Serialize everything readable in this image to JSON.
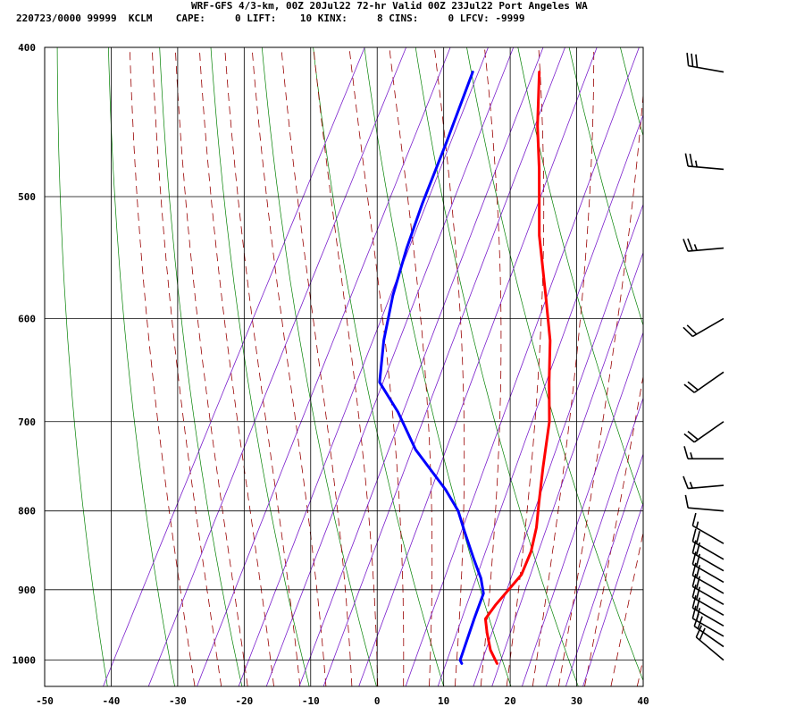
{
  "header": {
    "title": "WRF-GFS 4/3-km, 00Z 20Jul22 72-hr Valid 00Z 23Jul22 Port Angeles WA",
    "stats": "220723/0000 99999  KCLM    CAPE:     0 LIFT:    10 KINX:     8 CINS:     0 LFCV: -9999"
  },
  "chart_data": {
    "type": "line",
    "title": "WRF-GFS 4/3-km, 00Z 20Jul22 72-hr Valid 00Z 23Jul22 Port Angeles WA",
    "xlabel": "",
    "ylabel": "",
    "xlim": [
      -50,
      40
    ],
    "ylim": [
      1040,
      400
    ],
    "yscale": "log",
    "grid": true,
    "x_ticks": [
      -50,
      -40,
      -30,
      -20,
      -10,
      0,
      10,
      20,
      30,
      40
    ],
    "x_tick_labels": [
      "-50",
      "-40",
      "-30",
      "-20",
      "-10",
      "0",
      "10",
      "20",
      "30",
      "40"
    ],
    "y_ticks": [
      400,
      500,
      600,
      700,
      800,
      900,
      1000
    ],
    "y_tick_labels": [
      "400",
      "500",
      "600",
      "700",
      "800",
      "900",
      "1000"
    ],
    "series": [
      {
        "name": "",
        "role": "temperature",
        "color": "#ff0000",
        "points": [
          [
            -21.8,
            415
          ],
          [
            -18,
            450
          ],
          [
            -14.5,
            480
          ],
          [
            -9.5,
            530
          ],
          [
            -4,
            580
          ],
          [
            0,
            620
          ],
          [
            3,
            660
          ],
          [
            6,
            700
          ],
          [
            8.5,
            750
          ],
          [
            10.5,
            790
          ],
          [
            12,
            820
          ],
          [
            13,
            850
          ],
          [
            13.3,
            880
          ],
          [
            12.5,
            900
          ],
          [
            11.7,
            920
          ],
          [
            11.2,
            940
          ],
          [
            12.5,
            960
          ],
          [
            14.3,
            985
          ],
          [
            16.3,
            1005
          ]
        ]
      },
      {
        "name": "",
        "role": "dewpoint",
        "color": "#0000ff",
        "points": [
          [
            -31.8,
            415
          ],
          [
            -30.5,
            460
          ],
          [
            -29.5,
            505
          ],
          [
            -28.5,
            540
          ],
          [
            -27,
            580
          ],
          [
            -25,
            620
          ],
          [
            -22.5,
            660
          ],
          [
            -17.5,
            690
          ],
          [
            -12,
            730
          ],
          [
            -4.5,
            775
          ],
          [
            -1,
            800
          ],
          [
            1.5,
            825
          ],
          [
            5,
            860
          ],
          [
            7.5,
            885
          ],
          [
            9,
            905
          ],
          [
            9.5,
            940
          ],
          [
            10.5,
            1000
          ],
          [
            11,
            1005
          ]
        ]
      }
    ],
    "background_lines": {
      "dry_adiabats_color": "#008000",
      "moist_adiabats_color": "#990000",
      "mixing_ratio_color": "#7a1ecc",
      "isotherm_color": "#000000"
    },
    "wind_barbs": {
      "color": "#000000",
      "placement": "right",
      "barbs": [
        {
          "pressure": 415,
          "speed_kt": 30,
          "direction_deg": 280
        },
        {
          "pressure": 480,
          "speed_kt": 25,
          "direction_deg": 275
        },
        {
          "pressure": 540,
          "speed_kt": 25,
          "direction_deg": 265
        },
        {
          "pressure": 600,
          "speed_kt": 20,
          "direction_deg": 240
        },
        {
          "pressure": 650,
          "speed_kt": 20,
          "direction_deg": 235
        },
        {
          "pressure": 700,
          "speed_kt": 20,
          "direction_deg": 235
        },
        {
          "pressure": 740,
          "speed_kt": 15,
          "direction_deg": 270
        },
        {
          "pressure": 770,
          "speed_kt": 15,
          "direction_deg": 265
        },
        {
          "pressure": 800,
          "speed_kt": 10,
          "direction_deg": 275
        },
        {
          "pressure": 840,
          "speed_kt": 15,
          "direction_deg": 300
        },
        {
          "pressure": 860,
          "speed_kt": 20,
          "direction_deg": 300
        },
        {
          "pressure": 875,
          "speed_kt": 20,
          "direction_deg": 300
        },
        {
          "pressure": 890,
          "speed_kt": 20,
          "direction_deg": 300
        },
        {
          "pressure": 905,
          "speed_kt": 20,
          "direction_deg": 300
        },
        {
          "pressure": 920,
          "speed_kt": 20,
          "direction_deg": 300
        },
        {
          "pressure": 935,
          "speed_kt": 20,
          "direction_deg": 300
        },
        {
          "pressure": 950,
          "speed_kt": 20,
          "direction_deg": 300
        },
        {
          "pressure": 965,
          "speed_kt": 20,
          "direction_deg": 300
        },
        {
          "pressure": 980,
          "speed_kt": 20,
          "direction_deg": 305
        },
        {
          "pressure": 1000,
          "speed_kt": 20,
          "direction_deg": 310
        }
      ]
    }
  }
}
